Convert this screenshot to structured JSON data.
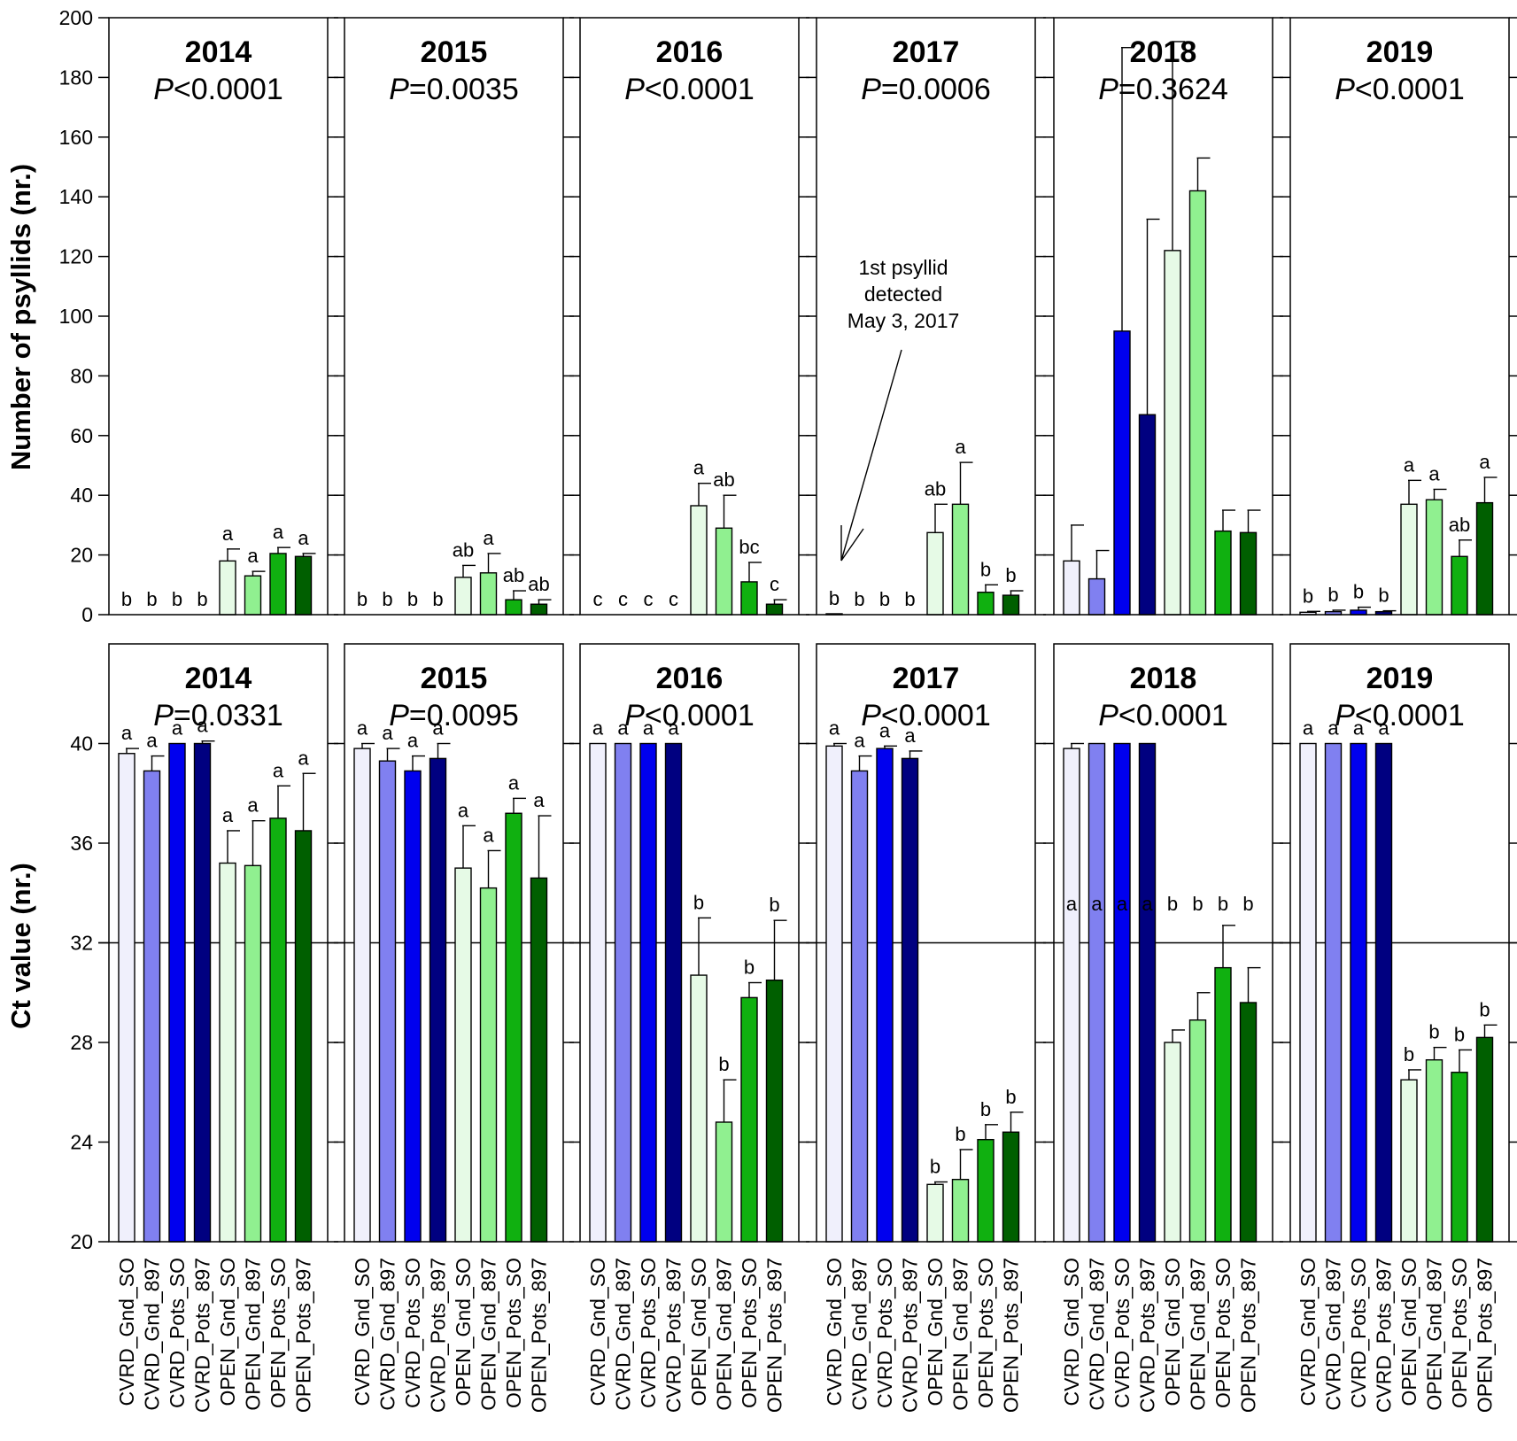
{
  "chart_data": {
    "type": "bar",
    "categories": [
      "CVRD_Gnd_SO",
      "CVRD_Gnd_897",
      "CVRD_Pots_SO",
      "CVRD_Pots_897",
      "OPEN_Gnd_SO",
      "OPEN_Gnd_897",
      "OPEN_Pots_SO",
      "OPEN_Pots_897"
    ],
    "colors": [
      "#f0f0fc",
      "#8080f0",
      "#0000ee",
      "#000080",
      "#e6fae6",
      "#90f090",
      "#10b010",
      "#005f00"
    ],
    "rows": [
      {
        "name": "psyllids",
        "ylabel": "Number of psyllids (nr.)",
        "ylim": [
          0,
          200
        ],
        "yticks": [
          0,
          20,
          40,
          60,
          80,
          100,
          120,
          140,
          160,
          180,
          200
        ],
        "ytick_labels": [
          "0",
          "20",
          "40",
          "60",
          "80",
          "100",
          "120",
          "140",
          "160",
          "180",
          "200"
        ],
        "panels": [
          {
            "year": "2014",
            "p_symbol": "P",
            "p_rest": "<0.0001",
            "values": [
              0,
              0,
              0,
              0,
              18,
              13,
              20.5,
              19.5
            ],
            "errors": [
              0,
              0,
              0,
              0,
              4,
              1.5,
              2,
              1
            ],
            "letters": [
              "b",
              "b",
              "b",
              "b",
              "a",
              "a",
              "a",
              "a"
            ]
          },
          {
            "year": "2015",
            "p_symbol": "P",
            "p_rest": "=0.0035",
            "values": [
              0,
              0,
              0,
              0,
              12.5,
              14,
              5,
              3.5
            ],
            "errors": [
              0,
              0,
              0,
              0,
              4,
              6.5,
              3,
              1.5
            ],
            "letters": [
              "b",
              "b",
              "b",
              "b",
              "ab",
              "a",
              "ab",
              "ab"
            ]
          },
          {
            "year": "2016",
            "p_symbol": "P",
            "p_rest": "<0.0001",
            "values": [
              0,
              0,
              0,
              0,
              36.5,
              29,
              11,
              3.5
            ],
            "errors": [
              0,
              0,
              0,
              0,
              7.5,
              11,
              6.5,
              1.5
            ],
            "letters": [
              "c",
              "c",
              "c",
              "c",
              "a",
              "ab",
              "bc",
              "c"
            ]
          },
          {
            "year": "2017",
            "p_symbol": "P",
            "p_rest": "=0.0006",
            "values": [
              0.3,
              0,
              0,
              0,
              27.5,
              37,
              7.5,
              6.5
            ],
            "errors": [
              0,
              0,
              0,
              0,
              9.5,
              14,
              2.5,
              1.5
            ],
            "letters": [
              "b",
              "b",
              "b",
              "b",
              "ab",
              "a",
              "b",
              "b"
            ],
            "annotation": [
              "1st psyllid",
              "detected",
              "May 3, 2017"
            ]
          },
          {
            "year": "2018",
            "p_symbol": "P",
            "p_rest": "=0.3624",
            "values": [
              18,
              12,
              95,
              67,
              122,
              142,
              28,
              27.5
            ],
            "errors": [
              12,
              9.5,
              95,
              65.5,
              70,
              11,
              7,
              7.5
            ],
            "letters": [
              "",
              "",
              "",
              "",
              "",
              "",
              "",
              ""
            ]
          },
          {
            "year": "2019",
            "p_symbol": "P",
            "p_rest": "<0.0001",
            "values": [
              0.8,
              1,
              1.5,
              1,
              37,
              38.5,
              19.5,
              37.5
            ],
            "errors": [
              0.3,
              0.5,
              1,
              0.3,
              8,
              3.5,
              5.5,
              8.5
            ],
            "letters": [
              "b",
              "b",
              "b",
              "b",
              "a",
              "a",
              "ab",
              "a"
            ]
          }
        ]
      },
      {
        "name": "ct",
        "ylabel": "Ct value (nr.)",
        "ylim": [
          20,
          44
        ],
        "yticks": [
          20,
          24,
          28,
          32,
          36,
          40
        ],
        "ytick_labels": [
          "20",
          "24",
          "28",
          "32",
          "36",
          "40"
        ],
        "reference_line": 32,
        "panels": [
          {
            "year": "2014",
            "p_symbol": "P",
            "p_rest": "=0.0331",
            "values": [
              39.6,
              38.9,
              40,
              40,
              35.2,
              35.1,
              37,
              36.5
            ],
            "errors": [
              0.2,
              0.6,
              0,
              0.1,
              1.3,
              1.8,
              1.3,
              2.3
            ],
            "letters": [
              "a",
              "a",
              "a",
              "a",
              "a",
              "a",
              "a",
              "a"
            ]
          },
          {
            "year": "2015",
            "p_symbol": "P",
            "p_rest": "=0.0095",
            "values": [
              39.8,
              39.3,
              38.9,
              39.4,
              35,
              34.2,
              37.2,
              34.6
            ],
            "errors": [
              0.2,
              0.5,
              0.6,
              0.6,
              1.7,
              1.5,
              0.6,
              2.5
            ],
            "letters": [
              "a",
              "a",
              "a",
              "a",
              "a",
              "a",
              "a",
              "a"
            ]
          },
          {
            "year": "2016",
            "p_symbol": "P",
            "p_rest": "<0.0001",
            "values": [
              40,
              40,
              40,
              40,
              30.7,
              24.8,
              29.8,
              30.5
            ],
            "errors": [
              0,
              0,
              0,
              0,
              2.3,
              1.7,
              0.6,
              2.4
            ],
            "letters": [
              "a",
              "a",
              "a",
              "a",
              "b",
              "b",
              "b",
              "b"
            ]
          },
          {
            "year": "2017",
            "p_symbol": "P",
            "p_rest": "<0.0001",
            "values": [
              39.9,
              38.9,
              39.8,
              39.4,
              22.3,
              22.5,
              24.1,
              24.4
            ],
            "errors": [
              0.1,
              0.6,
              0.1,
              0.3,
              0.1,
              1.2,
              0.6,
              0.8
            ],
            "letters": [
              "a",
              "a",
              "a",
              "a",
              "b",
              "b",
              "b",
              "b"
            ]
          },
          {
            "year": "2018",
            "p_symbol": "P",
            "p_rest": "<0.0001",
            "values": [
              39.8,
              40,
              40,
              40,
              28,
              28.9,
              31,
              29.6
            ],
            "errors": [
              0.2,
              0,
              0,
              0,
              0.5,
              1.1,
              1.7,
              1.4
            ],
            "letters": [
              "a",
              "a",
              "a",
              "a",
              "b",
              "b",
              "b",
              "b"
            ],
            "letters_fixed_y": 33.3
          },
          {
            "year": "2019",
            "p_symbol": "P",
            "p_rest": "<0.0001",
            "values": [
              40,
              40,
              40,
              40,
              26.5,
              27.3,
              26.8,
              28.2
            ],
            "errors": [
              0,
              0,
              0,
              0,
              0.4,
              0.5,
              0.9,
              0.5
            ],
            "letters": [
              "a",
              "a",
              "a",
              "a",
              "b",
              "b",
              "b",
              "b"
            ]
          }
        ]
      }
    ]
  }
}
